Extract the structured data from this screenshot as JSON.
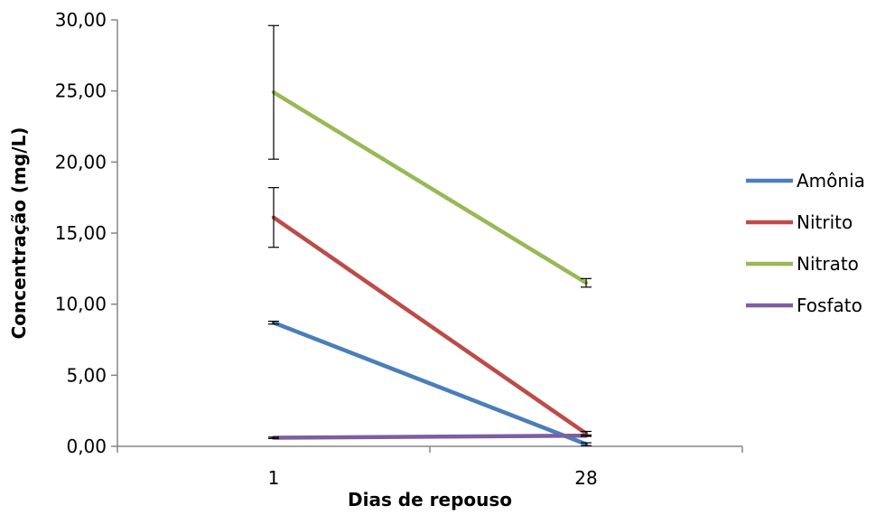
{
  "chart_data": {
    "type": "line",
    "categories": [
      "1",
      "28"
    ],
    "xlabel": "Dias de repouso",
    "ylabel": "Concentração (mg/L)",
    "ylim": [
      0,
      30
    ],
    "y_ticks": [
      "0,00",
      "5,00",
      "10,00",
      "15,00",
      "20,00",
      "25,00",
      "30,00"
    ],
    "grid": false,
    "legend_position": "right",
    "series": [
      {
        "name": "Amônia",
        "color": "#4A7EBB",
        "values": [
          8.7,
          0.15
        ],
        "errors": [
          0.1,
          0.1
        ]
      },
      {
        "name": "Nitrito",
        "color": "#BE4B48",
        "values": [
          16.1,
          0.9
        ],
        "errors": [
          2.1,
          0.15
        ]
      },
      {
        "name": "Nitrato",
        "color": "#98B954",
        "values": [
          24.9,
          11.5
        ],
        "errors": [
          4.7,
          0.3
        ]
      },
      {
        "name": "Fosfato",
        "color": "#7D5FA0",
        "values": [
          0.6,
          0.75
        ],
        "errors": [
          0.05,
          0.05
        ]
      }
    ]
  }
}
